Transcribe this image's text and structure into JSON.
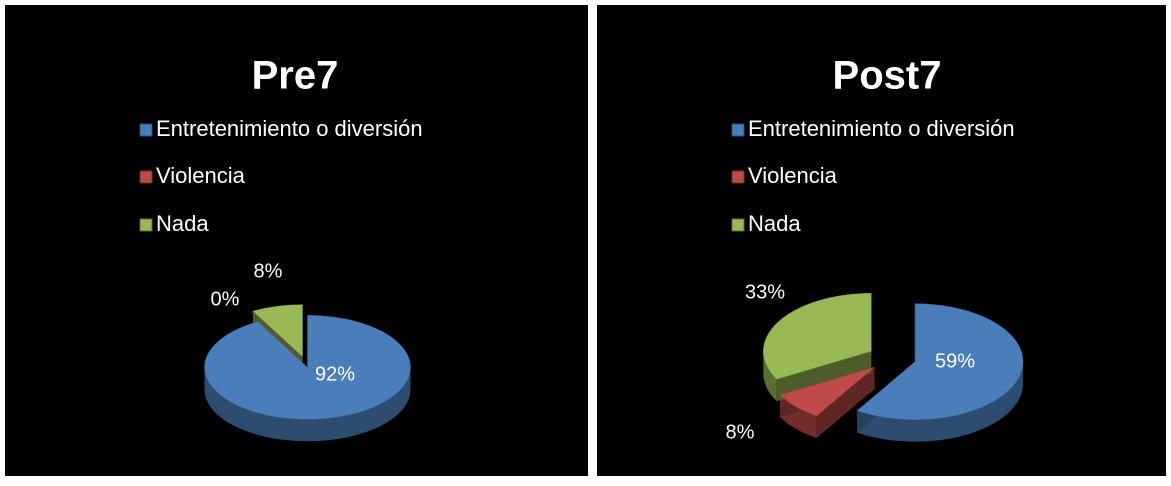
{
  "chart_data": [
    {
      "type": "pie",
      "title": "Pre7",
      "categories": [
        "Entretenimiento o diversión",
        "Violencia",
        "Nada"
      ],
      "values": [
        92,
        0,
        8
      ],
      "value_labels": [
        "92%",
        "0%",
        "8%"
      ],
      "colors": [
        "#4a7ebb",
        "#be4b48",
        "#98b954"
      ]
    },
    {
      "type": "pie",
      "title": "Post7",
      "categories": [
        "Entretenimiento o diversión",
        "Violencia",
        "Nada"
      ],
      "values": [
        59,
        8,
        33
      ],
      "value_labels": [
        "59%",
        "8%",
        "33%"
      ],
      "colors": [
        "#4a7ebb",
        "#be4b48",
        "#98b954"
      ]
    }
  ]
}
